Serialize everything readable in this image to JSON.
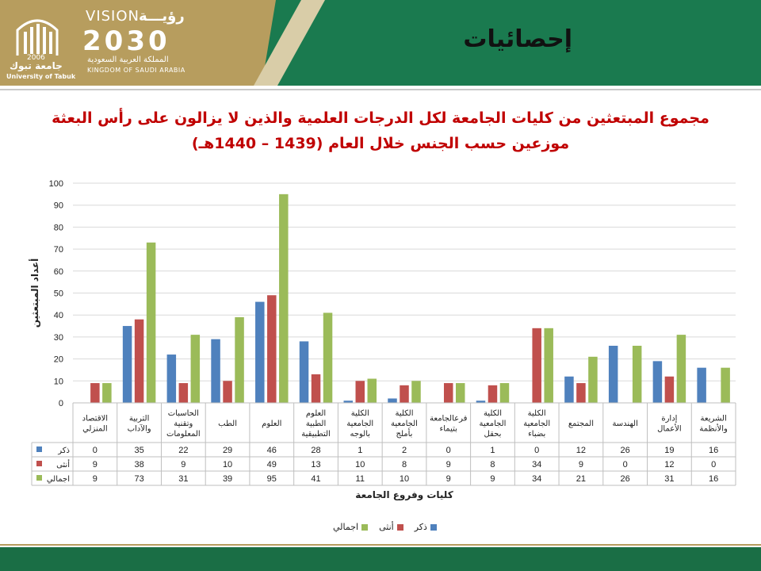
{
  "header": {
    "page_title": "إحصائيات",
    "university_ar": "جامعة تبوك",
    "university_en": "University of Tabuk",
    "university_year": "2006",
    "vision_en": "VISION",
    "vision_ar": "رؤيـــة",
    "vision_year": "2030",
    "kingdom_ar": "المملكة العربية السعودية",
    "kingdom_en": "KINGDOM OF SAUDI ARABIA"
  },
  "colors": {
    "male": "#4f81bd",
    "female": "#c0504d",
    "total": "#9bbb59"
  },
  "chart_data": {
    "type": "bar",
    "title_line1": "مجموع المبتعثين من كليات الجامعة لكل الدرجات العلمية والذين لا يزالون على رأس البعثة",
    "title_line2": "موزعين حسب الجنس خلال العام (1439 – 1440هـ)",
    "xlabel": "كليات وفروع الجامعة",
    "ylabel": "أعداد المبتعثين",
    "ylim": [
      0,
      100
    ],
    "yticks": [
      0,
      10,
      20,
      30,
      40,
      50,
      60,
      70,
      80,
      90,
      100
    ],
    "grid": true,
    "legend_position": "bottom",
    "categories": [
      [
        "الاقتصاد",
        "المنزلي"
      ],
      [
        "التربية",
        "والآداب"
      ],
      [
        "الحاسبات",
        "وتقنية",
        "المعلومات"
      ],
      [
        "الطب"
      ],
      [
        "العلوم"
      ],
      [
        "العلوم",
        "الطبية",
        "التطبيقية"
      ],
      [
        "الكلية",
        "الجامعية",
        "بالوجه"
      ],
      [
        "الكلية",
        "الجامعية",
        "بأملج"
      ],
      [
        "فرعالجامعة",
        "بتيماء"
      ],
      [
        "الكلية",
        "الجامعية",
        "بحقل"
      ],
      [
        "الكلية",
        "الجامعية",
        "بضباء"
      ],
      [
        "المجتمع"
      ],
      [
        "الهندسة"
      ],
      [
        "إدارة",
        "الأعمال"
      ],
      [
        "الشريعة",
        "والأنظمة"
      ]
    ],
    "series": [
      {
        "name": "ذكر",
        "values": [
          0,
          35,
          22,
          29,
          46,
          28,
          1,
          2,
          0,
          1,
          0,
          12,
          26,
          19,
          16
        ]
      },
      {
        "name": "أنثى",
        "values": [
          9,
          38,
          9,
          10,
          49,
          13,
          10,
          8,
          9,
          8,
          34,
          9,
          0,
          12,
          0
        ]
      },
      {
        "name": "اجمالي",
        "values": [
          9,
          73,
          31,
          39,
          95,
          41,
          11,
          10,
          9,
          9,
          34,
          21,
          26,
          31,
          16
        ]
      }
    ]
  }
}
